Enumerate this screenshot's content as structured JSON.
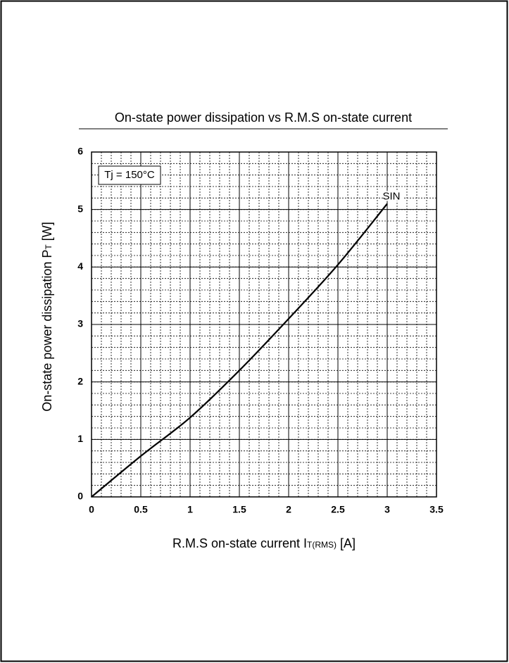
{
  "chart_data": {
    "type": "line",
    "title": "On-state  power  dissipation vs R.M.S  on-state  current",
    "xlabel": {
      "main": "R.M.S  on-state  current  I",
      "sub": "T(RMS)",
      "unit": "  [A]"
    },
    "ylabel": {
      "main": "On-state  power  dissipation  P",
      "sub": "T",
      "unit": "   [W]"
    },
    "annotations": [
      "Tj = 150°C"
    ],
    "x": [
      0,
      0.5,
      1,
      1.5,
      2,
      2.5,
      3
    ],
    "series": [
      {
        "name": "SIN",
        "color": "#000000",
        "values": [
          0,
          0.71,
          1.38,
          2.2,
          3.1,
          4.04,
          5.1
        ]
      }
    ],
    "xlim": [
      0,
      3.5
    ],
    "xticks": [
      0,
      0.5,
      1,
      1.5,
      2,
      2.5,
      3,
      3.5
    ],
    "ylim": [
      0,
      6
    ],
    "yticks": [
      0,
      1,
      2,
      3,
      4,
      5,
      6
    ],
    "grid": true,
    "minor_grid": {
      "x": 0.1,
      "y": 0.2
    }
  }
}
